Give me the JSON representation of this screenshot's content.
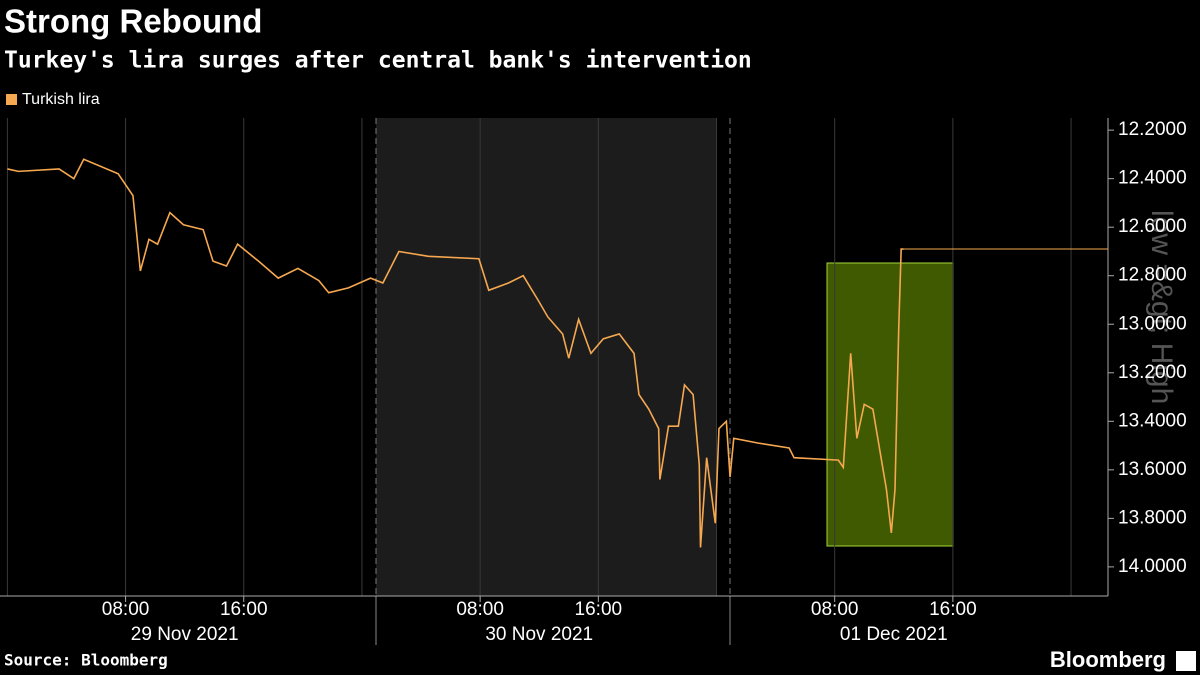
{
  "chart_data": {
    "type": "line",
    "title": "Strong Rebound",
    "subtitle": "Turkey's lira surges after central bank's intervention",
    "source": "Source: Bloomberg",
    "brand": "Bloomberg",
    "annotation": "low =&gt; High",
    "x": [
      "2021-11-29 00:00",
      "2021-11-29 00:45",
      "2021-11-29 03:30",
      "2021-11-29 04:30",
      "2021-11-29 05:10",
      "2021-11-29 07:30",
      "2021-11-29 08:30",
      "2021-11-29 09:00",
      "2021-11-29 09:35",
      "2021-11-29 10:10",
      "2021-11-29 11:00",
      "2021-11-29 11:55",
      "2021-11-29 13:15",
      "2021-11-29 13:55",
      "2021-11-29 14:50",
      "2021-11-29 15:35",
      "2021-11-29 17:00",
      "2021-11-29 18:20",
      "2021-11-29 19:40",
      "2021-11-29 21:05",
      "2021-11-29 21:45",
      "2021-11-29 23:05",
      "2021-11-30 00:35",
      "2021-11-30 01:25",
      "2021-11-30 02:30",
      "2021-11-30 04:30",
      "2021-11-30 07:55",
      "2021-11-30 08:35",
      "2021-11-30 09:55",
      "2021-11-30 10:55",
      "2021-11-30 11:55",
      "2021-11-30 12:35",
      "2021-11-30 13:35",
      "2021-11-30 14:00",
      "2021-11-30 14:40",
      "2021-11-30 15:30",
      "2021-11-30 16:20",
      "2021-11-30 17:25",
      "2021-11-30 18:25",
      "2021-11-30 18:45",
      "2021-11-30 19:25",
      "2021-11-30 20:05",
      "2021-11-30 20:10",
      "2021-11-30 20:45",
      "2021-11-30 21:25",
      "2021-11-30 21:50",
      "2021-11-30 22:25",
      "2021-11-30 22:50",
      "2021-11-30 22:55",
      "2021-11-30 23:20",
      "2021-11-30 23:55",
      "2021-12-01 00:10",
      "2021-12-01 00:40",
      "2021-12-01 00:55",
      "2021-12-01 01:10",
      "2021-12-01 02:50",
      "2021-12-01 04:55",
      "2021-12-01 05:15",
      "2021-12-01 08:15",
      "2021-12-01 08:35",
      "2021-12-01 09:05",
      "2021-12-01 09:30",
      "2021-12-01 10:00",
      "2021-12-01 10:35",
      "2021-12-01 10:55",
      "2021-12-01 11:30",
      "2021-12-01 11:50",
      "2021-12-01 12:05",
      "2021-12-01 12:20",
      "2021-12-01 12:30",
      "2021-12-01 12:40"
    ],
    "series": [
      {
        "name": "Turkish lira",
        "color": "#f6a850",
        "values": [
          12.36,
          12.37,
          12.36,
          12.4,
          12.32,
          12.38,
          12.47,
          12.78,
          12.65,
          12.67,
          12.54,
          12.59,
          12.61,
          12.74,
          12.76,
          12.67,
          12.74,
          12.81,
          12.77,
          12.82,
          12.87,
          12.85,
          12.81,
          12.83,
          12.7,
          12.72,
          12.73,
          12.86,
          12.83,
          12.8,
          12.9,
          12.97,
          13.04,
          13.14,
          12.98,
          13.12,
          13.06,
          13.04,
          13.12,
          13.29,
          13.35,
          13.43,
          13.64,
          13.42,
          13.42,
          13.25,
          13.29,
          13.58,
          13.92,
          13.55,
          13.82,
          13.43,
          13.4,
          13.63,
          13.47,
          13.49,
          13.51,
          13.55,
          13.56,
          13.59,
          13.12,
          13.47,
          13.33,
          13.35,
          13.47,
          13.68,
          13.86,
          13.68,
          13.02,
          12.69,
          12.69
        ]
      }
    ],
    "xlim": [
      "2021-11-28 23:30",
      "2021-12-02 02:30"
    ],
    "xticks": [
      {
        "value": "2021-11-29 08:00",
        "label": "08:00"
      },
      {
        "value": "2021-11-29 16:00",
        "label": "16:00"
      },
      {
        "value": "2021-11-30 08:00",
        "label": "08:00"
      },
      {
        "value": "2021-11-30 16:00",
        "label": "16:00"
      },
      {
        "value": "2021-12-01 08:00",
        "label": "08:00"
      },
      {
        "value": "2021-12-01 16:00",
        "label": "16:00"
      }
    ],
    "x_minor_ticks": [
      "2021-11-29 00:00",
      "2021-11-30 00:00",
      "2021-12-01 00:00",
      "2021-12-02 00:00"
    ],
    "date_labels": [
      {
        "value": "2021-11-29",
        "label": "29 Nov 2021"
      },
      {
        "value": "2021-11-30",
        "label": "30 Nov 2021"
      },
      {
        "value": "2021-12-01",
        "label": "01 Dec 2021"
      }
    ],
    "ylim": [
      14.12,
      12.15
    ],
    "yticks": [
      {
        "value": 12.2,
        "label": "12.2000"
      },
      {
        "value": 12.4,
        "label": "12.4000"
      },
      {
        "value": 12.6,
        "label": "12.6000"
      },
      {
        "value": 12.8,
        "label": "12.8000"
      },
      {
        "value": 13.0,
        "label": "13.0000"
      },
      {
        "value": 13.2,
        "label": "13.2000"
      },
      {
        "value": 13.4,
        "label": "13.4000"
      },
      {
        "value": 13.6,
        "label": "13.6000"
      },
      {
        "value": 13.8,
        "label": "13.8000"
      },
      {
        "value": 14.0,
        "label": "14.0000"
      }
    ],
    "grid": true,
    "legend": "top-left"
  }
}
